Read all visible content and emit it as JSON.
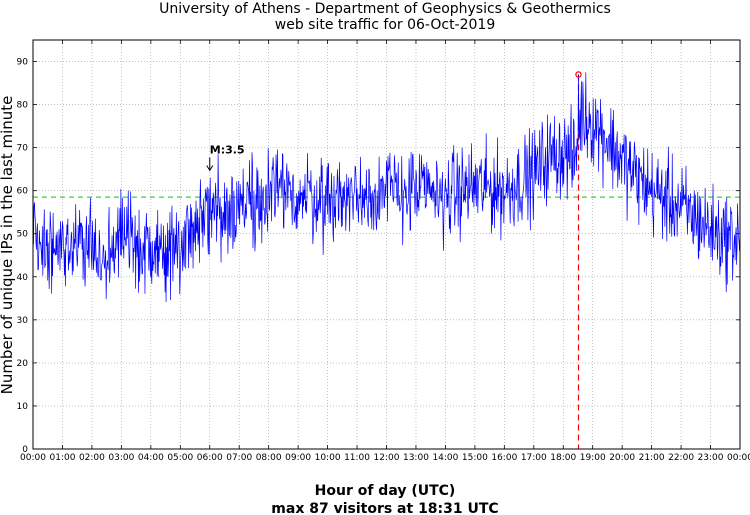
{
  "chart_data": {
    "type": "line",
    "title": "University of Athens - Department of Geophysics & Geothermics",
    "subtitle": "web site traffic for 06-Oct-2019",
    "xlabel": "Hour of day (UTC)",
    "ylabel": "Number of unique IPs in the last minute",
    "footer": "max 87 visitors at 18:31 UTC",
    "xlim": [
      0,
      24
    ],
    "ylim": [
      0,
      95
    ],
    "grid": true,
    "x_ticks": [
      {
        "value": 0,
        "label": "00:00"
      },
      {
        "value": 1,
        "label": "01:00"
      },
      {
        "value": 2,
        "label": "02:00"
      },
      {
        "value": 3,
        "label": "03:00"
      },
      {
        "value": 4,
        "label": "04:00"
      },
      {
        "value": 5,
        "label": "05:00"
      },
      {
        "value": 6,
        "label": "06:00"
      },
      {
        "value": 7,
        "label": "07:00"
      },
      {
        "value": 8,
        "label": "08:00"
      },
      {
        "value": 9,
        "label": "09:00"
      },
      {
        "value": 10,
        "label": "10:00"
      },
      {
        "value": 11,
        "label": "11:00"
      },
      {
        "value": 12,
        "label": "12:00"
      },
      {
        "value": 13,
        "label": "13:00"
      },
      {
        "value": 14,
        "label": "14:00"
      },
      {
        "value": 15,
        "label": "15:00"
      },
      {
        "value": 16,
        "label": "16:00"
      },
      {
        "value": 17,
        "label": "17:00"
      },
      {
        "value": 18,
        "label": "18:00"
      },
      {
        "value": 19,
        "label": "19:00"
      },
      {
        "value": 20,
        "label": "20:00"
      },
      {
        "value": 21,
        "label": "21:00"
      },
      {
        "value": 22,
        "label": "22:00"
      },
      {
        "value": 23,
        "label": "23:00"
      },
      {
        "value": 24,
        "label": "00:00"
      }
    ],
    "y_ticks": [
      {
        "value": 0,
        "label": "0"
      },
      {
        "value": 10,
        "label": "10"
      },
      {
        "value": 20,
        "label": "20"
      },
      {
        "value": 30,
        "label": "30"
      },
      {
        "value": 40,
        "label": "40"
      },
      {
        "value": 50,
        "label": "50"
      },
      {
        "value": 60,
        "label": "60"
      },
      {
        "value": 70,
        "label": "70"
      },
      {
        "value": 80,
        "label": "80"
      },
      {
        "value": 90,
        "label": "90"
      }
    ],
    "series": [
      {
        "name": "unique IPs per minute",
        "color": "#0000ff",
        "resolution_minutes": 1,
        "smooth_profile": {
          "x_hours": [
            0,
            1,
            2,
            2.5,
            3,
            3.5,
            4,
            5,
            5.5,
            6,
            6.5,
            7,
            8,
            9,
            10,
            11,
            12,
            13,
            14,
            15,
            16,
            17,
            17.5,
            18,
            18.4,
            18.6,
            19,
            19.5,
            20,
            20.5,
            21,
            22,
            23,
            23.5,
            24
          ],
          "y_mean": [
            49,
            48,
            46,
            44,
            50,
            46,
            45,
            48,
            52,
            55,
            56,
            57,
            59,
            59,
            58,
            59,
            60,
            60,
            59,
            61,
            60,
            64,
            68,
            69,
            67,
            78,
            76,
            72,
            67,
            63,
            60,
            56,
            51,
            49,
            49
          ],
          "noise_amplitude": 5
        }
      }
    ],
    "reference_lines": [
      {
        "name": "daily mean",
        "orientation": "horizontal",
        "y": 58.5,
        "color": "#00cc00",
        "style": "dashed"
      },
      {
        "name": "peak time",
        "orientation": "vertical",
        "x": 18.517,
        "color": "#ff0000",
        "style": "dashed"
      }
    ],
    "peak": {
      "x": 18.517,
      "y": 87,
      "time_label": "18:31",
      "marker_color": "#ff0000"
    },
    "annotations": [
      {
        "text": "M:3.5",
        "x": 6.0,
        "y": 64,
        "arrow": "down"
      }
    ]
  }
}
